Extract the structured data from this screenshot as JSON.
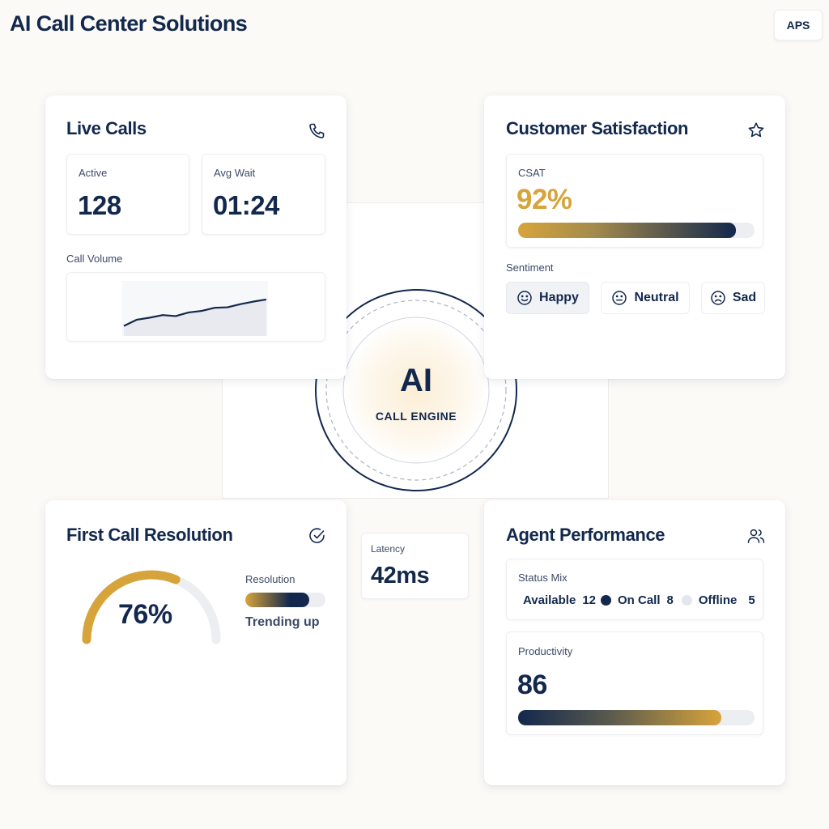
{
  "header": {
    "title": "AI Call Center Solutions",
    "badge": "APS"
  },
  "live_calls": {
    "title": "Live Calls",
    "icon": "phone-icon",
    "active_label": "Active",
    "active_value": "128",
    "avg_wait_label": "Avg Wait",
    "avg_wait_value": "01:24",
    "volume_label": "Call Volume",
    "volume_trend": [
      0.1,
      0.22,
      0.26,
      0.31,
      0.29,
      0.36,
      0.39,
      0.45,
      0.46,
      0.52,
      0.57,
      0.61
    ]
  },
  "csat": {
    "title": "Customer Satisfaction",
    "icon": "star-icon",
    "label": "CSAT",
    "value": "92%",
    "fill_fraction": 0.92,
    "sentiment_label": "Sentiment",
    "sentiments": [
      {
        "label": "Happy",
        "icon": "smile-icon"
      },
      {
        "label": "Neutral",
        "icon": "neutral-face-icon"
      },
      {
        "label": "Sad",
        "icon": "sad-face-icon"
      }
    ]
  },
  "engine": {
    "title": "AI",
    "subtitle": "CALL ENGINE"
  },
  "fcr": {
    "title": "First Call Resolution",
    "icon": "check-circle-icon",
    "value": "76%",
    "gauge_fraction": 0.76,
    "resolution_label": "Resolution",
    "resolution_fill": 0.8,
    "trend_text": "Trending up"
  },
  "latency": {
    "label": "Latency",
    "value": "42ms"
  },
  "agent": {
    "title": "Agent Performance",
    "icon": "users-icon",
    "status_label": "Status Mix",
    "status": [
      {
        "label": "Available",
        "count": "12"
      },
      {
        "label": "On Call",
        "count": "8"
      },
      {
        "label": "Offline",
        "count": "5"
      }
    ],
    "productivity_label": "Productivity",
    "productivity_value": "86",
    "productivity_fill": 0.86
  },
  "colors": {
    "navy": "#13284d",
    "gold": "#d7a43c",
    "track": "#eceef2",
    "offline_dot": "#e3e6ec"
  }
}
